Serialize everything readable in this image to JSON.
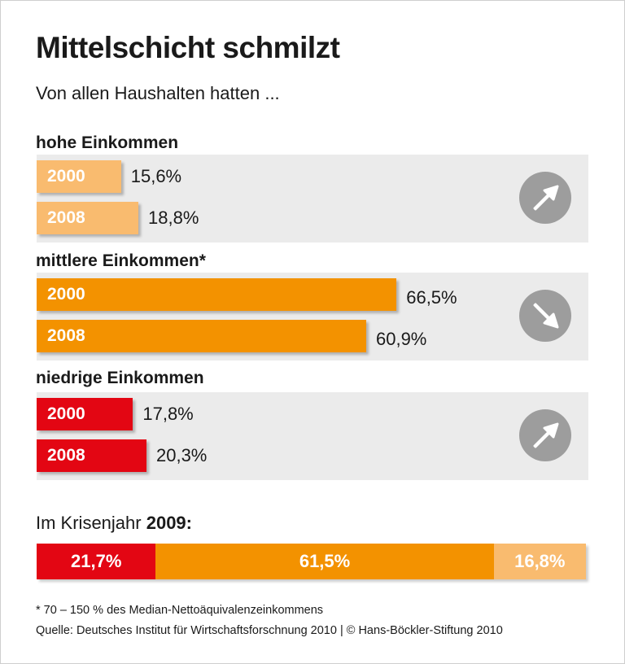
{
  "title": "Mittelschicht schmilzt",
  "subtitle": "Von allen Haushalten hatten ...",
  "colors": {
    "high": "#f9bb6f",
    "middle": "#f39200",
    "low": "#e30613",
    "panel": "#ebebeb",
    "circle": "#9d9d9d"
  },
  "chart_data": {
    "type": "bar",
    "groups": [
      {
        "label": "hohe Einkommen",
        "trend": "up-arrow-icon",
        "bars": [
          {
            "year": "2000",
            "value": 15.6,
            "label": "15,6%"
          },
          {
            "year": "2008",
            "value": 18.8,
            "label": "18,8%"
          }
        ]
      },
      {
        "label": "mittlere Einkommen*",
        "trend": "down-arrow-icon",
        "bars": [
          {
            "year": "2000",
            "value": 66.5,
            "label": "66,5%"
          },
          {
            "year": "2008",
            "value": 60.9,
            "label": "60,9%"
          }
        ]
      },
      {
        "label": "niedrige Einkommen",
        "trend": "up-arrow-icon",
        "bars": [
          {
            "year": "2000",
            "value": 17.8,
            "label": "17,8%"
          },
          {
            "year": "2008",
            "value": 20.3,
            "label": "20,3%"
          }
        ]
      }
    ],
    "stacked": {
      "label_prefix": "Im Krisenjahr ",
      "label_year": "2009:",
      "segments": [
        {
          "value": 21.7,
          "label": "21,7%",
          "key": "low"
        },
        {
          "value": 61.5,
          "label": "61,5%",
          "key": "middle"
        },
        {
          "value": 16.8,
          "label": "16,8%",
          "key": "high"
        }
      ]
    }
  },
  "footnote": "* 70 – 150 % des Median-Nettoäquivalenzeinkommens",
  "source": "Quelle: Deutsches Institut für Wirtschaftsforschnung 2010 | © Hans-Böckler-Stiftung 2010"
}
